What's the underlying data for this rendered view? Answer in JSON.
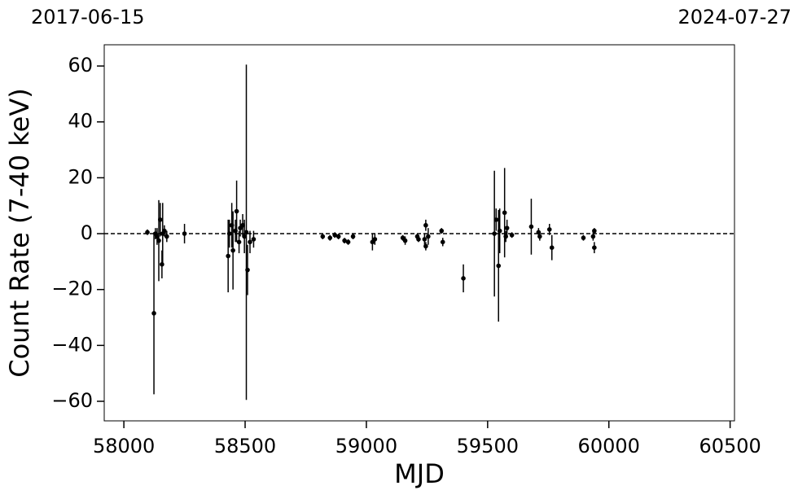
{
  "chart_data": {
    "type": "errorbar",
    "xlabel": "MJD",
    "ylabel": "Count Rate (7-40 keV)",
    "xlim": [
      57919,
      60518
    ],
    "ylim": [
      -67,
      67.6
    ],
    "xticks": [
      58000,
      58500,
      59000,
      59500,
      60000,
      60500
    ],
    "yticks": [
      {
        "value": -60,
        "label": "−60"
      },
      {
        "value": -40,
        "label": "−40"
      },
      {
        "value": -20,
        "label": "−20"
      },
      0,
      20,
      40,
      60
    ],
    "x2ticks": [
      {
        "value": 57919,
        "label": "2017-06-15"
      },
      {
        "value": 60518,
        "label": "2024-07-27"
      }
    ],
    "hline": 0,
    "color": "#000000",
    "x": [
      58097,
      58124,
      58130,
      58137,
      58144,
      58150,
      58157,
      58160,
      58167,
      58177,
      58250,
      58430,
      58435,
      58445,
      58450,
      58460,
      58465,
      58475,
      58480,
      58490,
      58497,
      58505,
      58510,
      58520,
      58535,
      58820,
      58850,
      58870,
      58885,
      58910,
      58925,
      58945,
      59025,
      59035,
      59150,
      59160,
      59210,
      59215,
      59240,
      59245,
      59245,
      59255,
      59310,
      59315,
      59400,
      59528,
      59535,
      59545,
      59550,
      59570,
      59575,
      59580,
      59600,
      59680,
      59710,
      59715,
      59755,
      59765,
      59895,
      59935,
      59940,
      59940
    ],
    "values": [
      0.5,
      -28.5,
      0,
      -1,
      -2.5,
      5,
      -11,
      0,
      1,
      -1,
      0,
      -8,
      0,
      3,
      -6,
      1,
      8,
      -3,
      2,
      3,
      -1,
      0.5,
      -13,
      -3,
      -2,
      -1,
      -1.5,
      -0.5,
      -1,
      -2.5,
      -3,
      -1,
      -3,
      -2,
      -1.5,
      -2.5,
      -1,
      -2,
      -2,
      3,
      -4.5,
      -1,
      1,
      -3,
      -16,
      0,
      5,
      -11.5,
      1,
      7.5,
      -1,
      2,
      -0.5,
      2.5,
      0.5,
      -1,
      1.5,
      -5,
      -1.5,
      -1,
      1,
      -5
    ],
    "errors": [
      1,
      29,
      2,
      3,
      14.5,
      6,
      5,
      11,
      2,
      2,
      3.5,
      13,
      5,
      8,
      14,
      4,
      11,
      4,
      3,
      4,
      6,
      60,
      9,
      4,
      3,
      1,
      1,
      1,
      1,
      1,
      1,
      1,
      3,
      2,
      1,
      1.5,
      1,
      1,
      2,
      2,
      1.5,
      3,
      1,
      1.5,
      5,
      22.5,
      4,
      20,
      8,
      16,
      2,
      3,
      1,
      10,
      1.5,
      1.5,
      2,
      4.5,
      1,
      1.5,
      1,
      2
    ]
  }
}
